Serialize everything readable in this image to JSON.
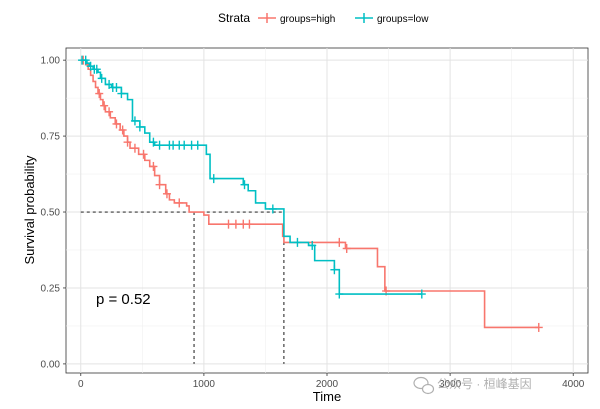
{
  "chart_data": {
    "type": "line",
    "subtype": "kaplan-meier",
    "xlabel": "Time",
    "ylabel": "Survival probability",
    "xlim": [
      -120,
      4120
    ],
    "ylim": [
      -0.03,
      1.04
    ],
    "x_ticks": [
      0,
      1000,
      2000,
      3000,
      4000
    ],
    "y_ticks": [
      0.0,
      0.25,
      0.5,
      0.75,
      1.0
    ],
    "y_tick_labels": [
      "0.00",
      "0.25",
      "0.50",
      "0.75",
      "1.00"
    ],
    "grid": true,
    "legend": {
      "title": "Strata",
      "position": "top",
      "entries": [
        "groups=high",
        "groups=low"
      ]
    },
    "annotation": "p = 0.52",
    "median_lines": [
      {
        "series": "groups=high",
        "x": 920,
        "y": 0.5
      },
      {
        "series": "groups=low",
        "x": 1650,
        "y": 0.5
      }
    ],
    "series": [
      {
        "name": "groups=high",
        "color": "#F8766D",
        "steps": [
          [
            0,
            1.0
          ],
          [
            40,
            0.985
          ],
          [
            60,
            0.97
          ],
          [
            80,
            0.95
          ],
          [
            100,
            0.93
          ],
          [
            120,
            0.91
          ],
          [
            140,
            0.89
          ],
          [
            160,
            0.87
          ],
          [
            180,
            0.85
          ],
          [
            200,
            0.83
          ],
          [
            240,
            0.81
          ],
          [
            280,
            0.79
          ],
          [
            320,
            0.77
          ],
          [
            350,
            0.75
          ],
          [
            380,
            0.73
          ],
          [
            400,
            0.71
          ],
          [
            470,
            0.69
          ],
          [
            520,
            0.67
          ],
          [
            560,
            0.65
          ],
          [
            600,
            0.62
          ],
          [
            640,
            0.59
          ],
          [
            690,
            0.56
          ],
          [
            720,
            0.54
          ],
          [
            760,
            0.53
          ],
          [
            860,
            0.52
          ],
          [
            880,
            0.5
          ],
          [
            1000,
            0.49
          ],
          [
            1040,
            0.46
          ],
          [
            1640,
            0.42
          ],
          [
            1650,
            0.4
          ],
          [
            1950,
            0.4
          ],
          [
            2150,
            0.38
          ],
          [
            2410,
            0.32
          ],
          [
            2470,
            0.24
          ],
          [
            3280,
            0.12
          ],
          [
            3720,
            0.12
          ]
        ],
        "censor_times": [
          20,
          150,
          190,
          230,
          290,
          340,
          380,
          440,
          510,
          590,
          640,
          700,
          800,
          1200,
          1260,
          1320,
          1370,
          2100,
          2160,
          2480,
          3720
        ]
      },
      {
        "name": "groups=low",
        "color": "#00BFC4",
        "steps": [
          [
            0,
            1.0
          ],
          [
            50,
            0.99
          ],
          [
            70,
            0.98
          ],
          [
            100,
            0.97
          ],
          [
            140,
            0.96
          ],
          [
            160,
            0.94
          ],
          [
            200,
            0.92
          ],
          [
            250,
            0.91
          ],
          [
            330,
            0.89
          ],
          [
            380,
            0.87
          ],
          [
            420,
            0.8
          ],
          [
            480,
            0.78
          ],
          [
            520,
            0.76
          ],
          [
            560,
            0.73
          ],
          [
            600,
            0.72
          ],
          [
            1020,
            0.69
          ],
          [
            1050,
            0.61
          ],
          [
            1320,
            0.59
          ],
          [
            1360,
            0.57
          ],
          [
            1420,
            0.53
          ],
          [
            1500,
            0.51
          ],
          [
            1650,
            0.42
          ],
          [
            1700,
            0.4
          ],
          [
            1800,
            0.4
          ],
          [
            1850,
            0.39
          ],
          [
            1900,
            0.34
          ],
          [
            2060,
            0.31
          ],
          [
            2100,
            0.23
          ],
          [
            2770,
            0.23
          ]
        ],
        "censor_times": [
          10,
          40,
          80,
          110,
          130,
          170,
          230,
          260,
          290,
          330,
          440,
          480,
          590,
          640,
          720,
          750,
          800,
          840,
          900,
          950,
          1080,
          1330,
          1560,
          1760,
          1880,
          2060,
          2100,
          2770
        ]
      }
    ]
  },
  "watermark": {
    "text": "公众号 · 桓峰基因",
    "icon": "wechat-icon"
  }
}
